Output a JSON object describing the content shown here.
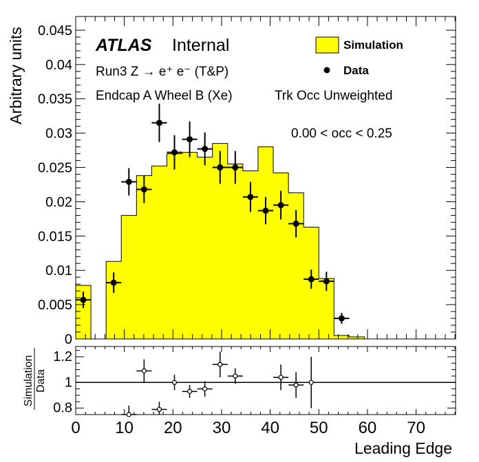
{
  "labels": {
    "experiment": "ATLAS",
    "status": "Internal",
    "process": "Run3 Z → e⁺ e⁻ (T&P)",
    "region": "Endcap A Wheel B (Xe)",
    "mode": "Trk Occ Unweighted",
    "cut": "0.00 < occ < 0.25"
  },
  "colors": {
    "simulation_fill": "#ffff00",
    "data_marker": "#000000"
  },
  "chart_data": [
    {
      "type": "histogram",
      "ylabel": "Arbitrary units",
      "xlim": [
        0,
        78.125
      ],
      "ylim": [
        0,
        0.047
      ],
      "yticks": [
        "0",
        "0.005",
        "0.01",
        "0.015",
        "0.02",
        "0.025",
        "0.03",
        "0.035",
        "0.04",
        "0.045"
      ],
      "bin_edges": [
        0,
        3.125,
        6.25,
        9.375,
        12.5,
        15.625,
        18.75,
        21.875,
        25,
        28.125,
        31.25,
        34.375,
        37.5,
        40.625,
        43.75,
        46.875,
        50,
        53.125,
        56.25,
        59.375,
        62.5,
        65.625,
        68.75,
        71.875,
        75,
        78.125
      ],
      "legend": {
        "position": "top-right",
        "entries": [
          "Simulation",
          "Data"
        ]
      },
      "series": [
        {
          "name": "Simulation",
          "style": "filled-step",
          "values": [
            0.0078,
            0,
            0.0113,
            0.018,
            0.0238,
            0.0252,
            0.027,
            0.0272,
            0.0265,
            0.0285,
            0.0255,
            0.0245,
            0.028,
            0.0242,
            0.0213,
            0.0163,
            0.0088,
            0.0005,
            0.0003,
            0,
            0,
            0,
            0,
            0,
            0
          ]
        },
        {
          "name": "Data",
          "style": "markers",
          "x": [
            1.56,
            7.81,
            10.94,
            14.06,
            17.19,
            20.31,
            23.44,
            26.56,
            29.69,
            32.81,
            35.94,
            39.06,
            42.19,
            45.31,
            48.44,
            51.56,
            54.69
          ],
          "y": [
            0.0057,
            0.0082,
            0.0229,
            0.0218,
            0.0315,
            0.0272,
            0.0291,
            0.0277,
            0.025,
            0.025,
            0.0207,
            0.0187,
            0.0195,
            0.0168,
            0.0087,
            0.0084,
            0.003
          ],
          "yerr": [
            0.0012,
            0.0015,
            0.002,
            0.002,
            0.0028,
            0.0025,
            0.0026,
            0.0024,
            0.0024,
            0.0024,
            0.0022,
            0.002,
            0.0021,
            0.002,
            0.0014,
            0.0014,
            0.0008
          ]
        }
      ]
    },
    {
      "type": "scatter",
      "ylabel_numerator": "Simulation",
      "ylabel_denominator": "Data",
      "xlabel": "Leading Edge",
      "xlim": [
        0,
        78.125
      ],
      "ylim": [
        0.75,
        1.28
      ],
      "yticks": [
        "0.8",
        "1",
        "1.2"
      ],
      "xticks": [
        "0",
        "10",
        "20",
        "30",
        "40",
        "50",
        "60",
        "70"
      ],
      "reference_line": 1,
      "x": [
        10.94,
        14.06,
        17.19,
        20.31,
        23.44,
        26.56,
        29.69,
        32.81,
        42.19,
        45.31,
        48.44
      ],
      "y": [
        0.75,
        1.09,
        0.79,
        1.0,
        0.93,
        0.95,
        1.14,
        1.05,
        1.04,
        0.98,
        1.0
      ],
      "yerr": [
        0.07,
        0.09,
        0.06,
        0.06,
        0.05,
        0.06,
        0.1,
        0.06,
        0.1,
        0.1,
        0.2
      ]
    }
  ]
}
